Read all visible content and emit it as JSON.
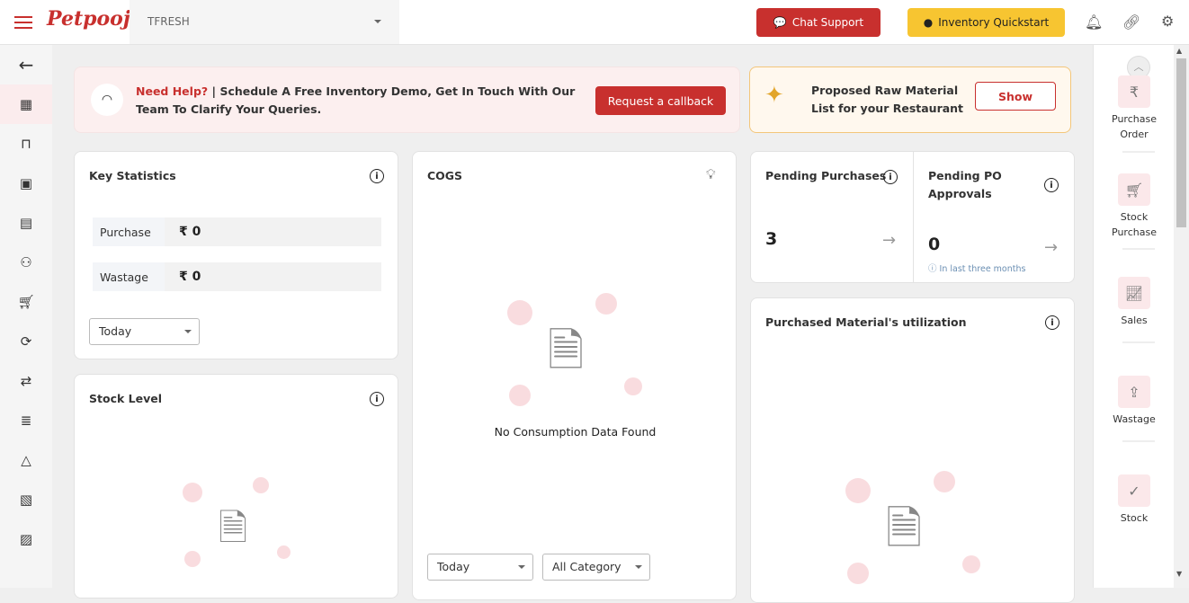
{
  "header": {
    "brand": "Petpooja",
    "outlet": "TFRESH",
    "chat_support": "Chat Support",
    "inventory_quickstart": "Inventory Quickstart"
  },
  "banner": {
    "need_help": "Need Help?",
    "separator": "|",
    "message": "Schedule A Free Inventory Demo, Get In Touch With Our Team To Clarify Your Queries.",
    "callback": "Request a callback"
  },
  "raw_material": {
    "text": "Proposed Raw Material List for your Restaurant",
    "show": "Show"
  },
  "key_statistics": {
    "title": "Key Statistics",
    "rows": [
      {
        "label": "Purchase",
        "value": "₹ 0"
      },
      {
        "label": "Wastage",
        "value": "₹ 0"
      }
    ],
    "period": "Today"
  },
  "stock_level": {
    "title": "Stock Level"
  },
  "cogs": {
    "title": "COGS",
    "empty": "No Consumption Data Found",
    "period": "Today",
    "category": "All Category"
  },
  "pending_purchases": {
    "title": "Pending Purchases",
    "value": "3"
  },
  "pending_po": {
    "title": "Pending PO Approvals",
    "value": "0",
    "note": "In last three months"
  },
  "utilization": {
    "title": "Purchased Material's utilization"
  },
  "quick_actions": [
    {
      "label": "Purchase Order",
      "icon": "rupee-doc-icon"
    },
    {
      "label": "Stock Purchase",
      "icon": "cart-icon"
    },
    {
      "label": "Sales",
      "icon": "chart-icon"
    },
    {
      "label": "Wastage",
      "icon": "trash-icon"
    },
    {
      "label": "Stock",
      "icon": "clipboard-check-icon"
    }
  ],
  "colors": {
    "brand": "#c8302e",
    "accent": "#f7c531"
  }
}
